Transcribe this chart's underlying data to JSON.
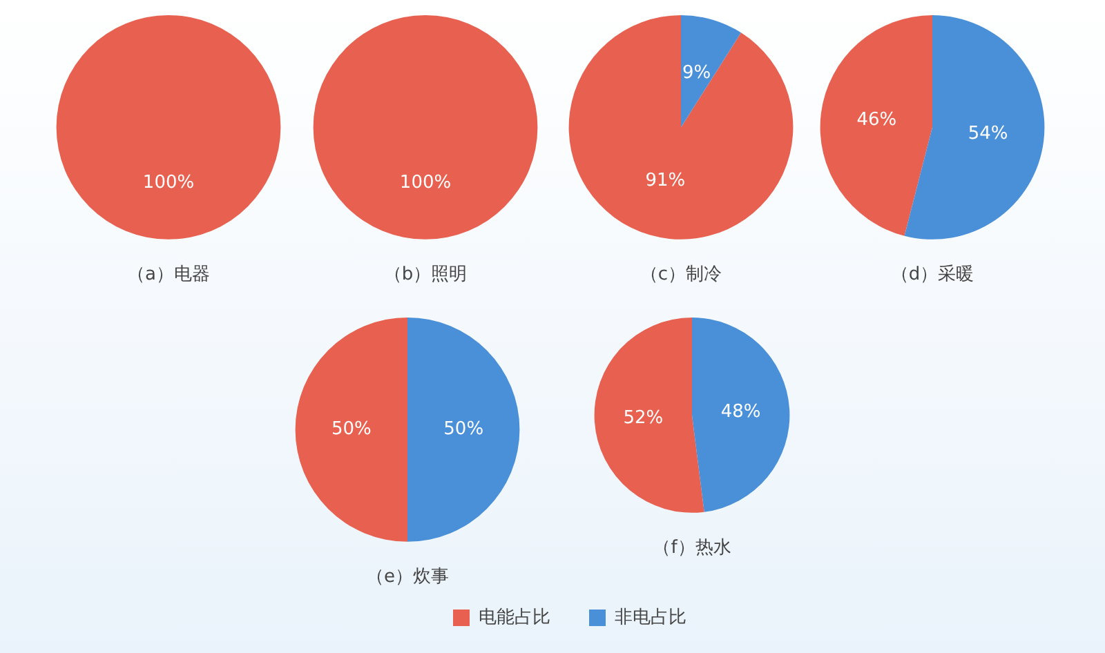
{
  "chart_data": [
    {
      "type": "pie",
      "title": "（a）电器",
      "categories": [
        null,
        null
      ],
      "values": [
        100,
        0
      ],
      "colors": [
        "#e8604f",
        "#4a90d9"
      ],
      "value_labels": [
        "100%",
        null
      ]
    },
    {
      "type": "pie",
      "title": "（b）照明",
      "categories": [
        null,
        null
      ],
      "values": [
        100,
        0
      ],
      "colors": [
        "#e8604f",
        "#4a90d9"
      ],
      "value_labels": [
        "100%",
        null
      ]
    },
    {
      "type": "pie",
      "title": "（c）制冷",
      "categories": [
        null,
        null
      ],
      "values": [
        91,
        9
      ],
      "colors": [
        "#e8604f",
        "#4a90d9"
      ],
      "value_labels": [
        "91%",
        "9%"
      ]
    },
    {
      "type": "pie",
      "title": "（d）采暖",
      "categories": [
        null,
        null
      ],
      "values": [
        46,
        54
      ],
      "colors": [
        "#e8604f",
        "#4a90d9"
      ],
      "value_labels": [
        "46%",
        "54%"
      ]
    },
    {
      "type": "pie",
      "title": "（e）炊事",
      "categories": [
        null,
        null
      ],
      "values": [
        50,
        50
      ],
      "colors": [
        "#e8604f",
        "#4a90d9"
      ],
      "value_labels": [
        "50%",
        "50%"
      ]
    },
    {
      "type": "pie",
      "title": "（f）热水",
      "categories": [
        "电能占比",
        "非电占比"
      ],
      "values": [
        52,
        48
      ],
      "colors": [
        "#e8604f",
        "#4a90d9"
      ],
      "value_labels": [
        "52%",
        "48%"
      ],
      "legend": "bottom"
    }
  ]
}
